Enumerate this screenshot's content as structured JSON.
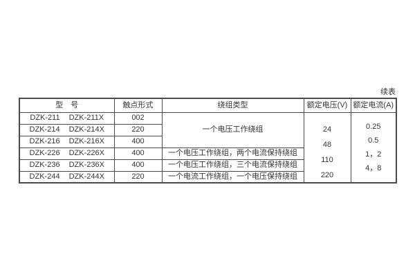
{
  "page": {
    "continued_label": "续表"
  },
  "table": {
    "headers": {
      "model": "型　号",
      "contact": "触点形式",
      "winding": "绕组类型",
      "voltage": "额定电压(V)",
      "current": "额定电流(A)"
    },
    "rows": [
      {
        "model_a": "DZK-211",
        "model_b": "DZK-211X",
        "contact": "002"
      },
      {
        "model_a": "DZK-214",
        "model_b": "DZK-214X",
        "contact": "220"
      },
      {
        "model_a": "DZK-216",
        "model_b": "DZK-216X",
        "contact": "400"
      },
      {
        "model_a": "DZK-226",
        "model_b": "DZK-226X",
        "contact": "400",
        "winding": "一个电压工作绕组，两个电流保持绕组"
      },
      {
        "model_a": "DZK-236",
        "model_b": "DZK-236X",
        "contact": "400",
        "winding": "一个电压工作绕组，三个电流保持绕组"
      },
      {
        "model_a": "DZK-244",
        "model_b": "DZK-244X",
        "contact": "220",
        "winding": "一个电流工作绕组，一个电压保持绕组"
      }
    ],
    "winding_merged": "一个电压工作绕组",
    "voltage_values": [
      "24",
      "48",
      "110",
      "220"
    ],
    "current_values": [
      "0.25",
      "0.5",
      "1，2",
      "4，8"
    ],
    "colors": {
      "border": "#4a4a4a",
      "text": "#333333",
      "background": "#ffffff"
    }
  }
}
